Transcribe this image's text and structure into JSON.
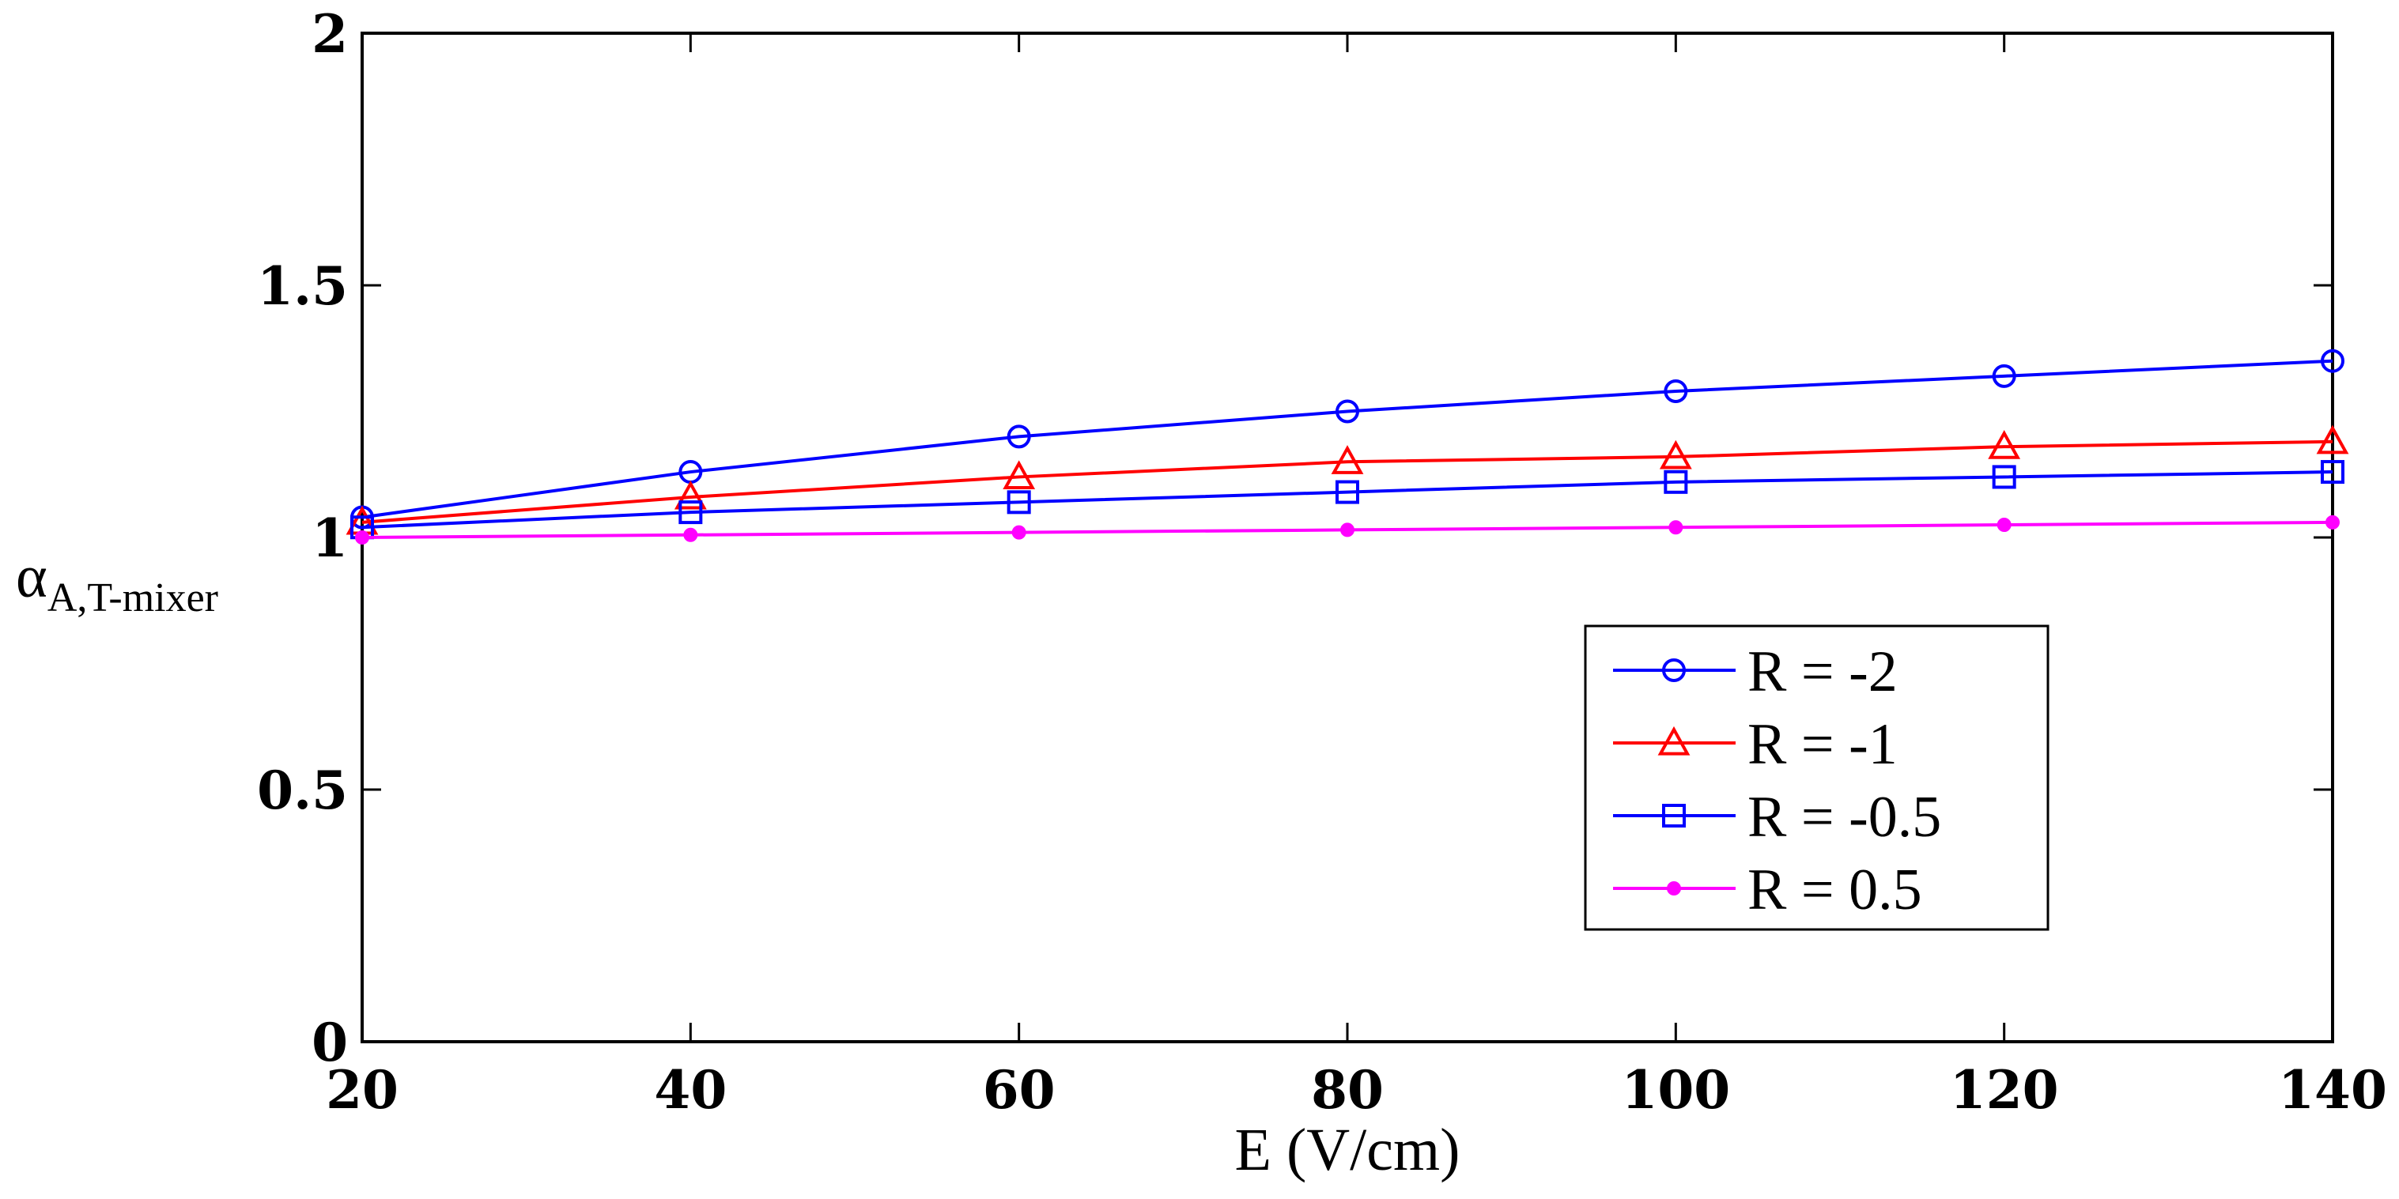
{
  "chart_data": {
    "type": "line",
    "title": "",
    "xlabel": "E (V/cm)",
    "ylabel_main": "α",
    "ylabel_sub": "A,T-mixer",
    "x": [
      20,
      40,
      60,
      80,
      100,
      120,
      140
    ],
    "xlim": [
      20,
      140
    ],
    "ylim": [
      0,
      2
    ],
    "xticks": [
      "20",
      "40",
      "60",
      "80",
      "100",
      "120",
      "140"
    ],
    "yticks": [
      "0",
      "0.5",
      "1",
      "1.5",
      "2"
    ],
    "grid": false,
    "legend_position": "lower-right",
    "series": [
      {
        "name": "R = -2",
        "color": "#0000ff",
        "marker": "circle",
        "values": [
          1.04,
          1.13,
          1.2,
          1.25,
          1.29,
          1.32,
          1.35
        ]
      },
      {
        "name": "R = -1",
        "color": "#ff0000",
        "marker": "triangle",
        "values": [
          1.03,
          1.08,
          1.12,
          1.15,
          1.16,
          1.18,
          1.19
        ]
      },
      {
        "name": "R = -0.5",
        "color": "#0000ff",
        "marker": "square",
        "values": [
          1.02,
          1.05,
          1.07,
          1.09,
          1.11,
          1.12,
          1.13
        ]
      },
      {
        "name": "R = 0.5",
        "color": "#ff00ff",
        "marker": "dot",
        "values": [
          1.0,
          1.005,
          1.01,
          1.015,
          1.02,
          1.025,
          1.03
        ]
      }
    ]
  }
}
